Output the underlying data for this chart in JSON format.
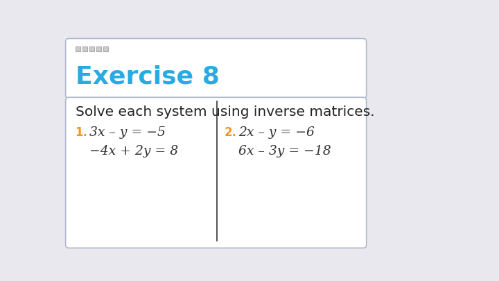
{
  "bg_color": "#e8e8ee",
  "title_box_color": "#ffffff",
  "content_box_color": "#ffffff",
  "title_text": "Exercise 8",
  "title_color": "#29ABE2",
  "title_fontsize": 26,
  "subtitle_text": "Solve each system using inverse matrices.",
  "subtitle_fontsize": 14.5,
  "number_color": "#F7941D",
  "eq1a": "3x – y = −5",
  "eq1b": "−4x + 2y = 8",
  "eq2a": "2x – y = −6",
  "eq2b": "6x – 3y = −18",
  "eq_fontsize": 13.5,
  "num_fontsize": 12,
  "bullet_squares": 5,
  "bullet_color": "#cccccc",
  "divider_color": "#333333",
  "box_edge_color": "#b0b8cc"
}
